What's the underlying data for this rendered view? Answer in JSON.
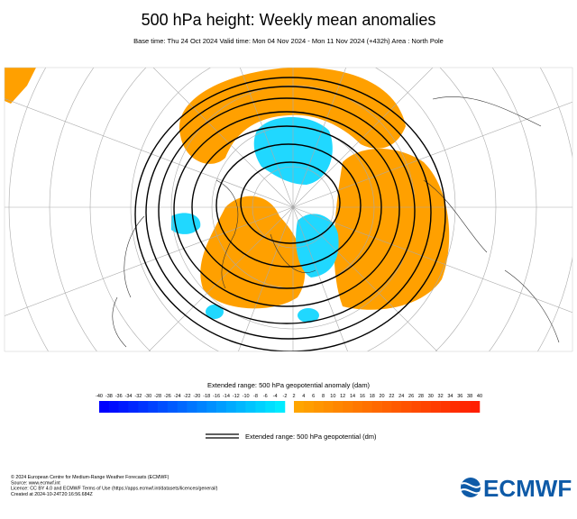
{
  "header": {
    "title": "500 hPa height: Weekly mean anomalies",
    "subtitle": "Base time: Thu 24 Oct 2024 Valid time: Mon 04 Nov 2024 - Mon 11 Nov 2024 (+432h) Area : North Pole"
  },
  "colorbar": {
    "label": "Extended range: 500 hPa geopotential anomaly (dam)",
    "negative_ticks": [
      -40,
      -38,
      -36,
      -34,
      -32,
      -30,
      -28,
      -26,
      -24,
      -22,
      -20,
      -18,
      -16,
      -14,
      -12,
      -10,
      -8,
      -6,
      -4,
      -2
    ],
    "positive_ticks": [
      2,
      4,
      6,
      8,
      10,
      12,
      14,
      16,
      18,
      20,
      22,
      24,
      26,
      28,
      30,
      32,
      34,
      36,
      38,
      40
    ]
  },
  "legend": {
    "label": "Extended range: 500 hPa geopotential (dm)"
  },
  "footer": {
    "lines": [
      "© 2024 European Centre for Medium-Range Weather Forecasts (ECMWF)",
      "Source: www.ecmwf.int",
      "Licence: CC BY 4.0 and ECMWF Terms of Use (https://apps.ecmwf.int/datasets/licences/general/)",
      "Created at 2024-10-24T20:16:56.684Z"
    ]
  },
  "logo": {
    "text": "ECMWF"
  }
}
